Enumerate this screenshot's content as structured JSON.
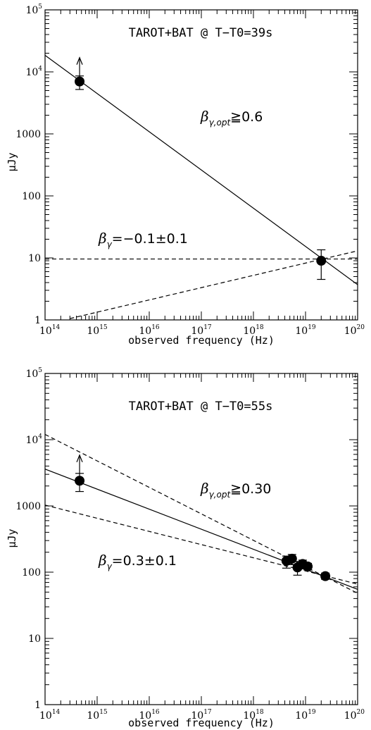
{
  "chart_data": [
    {
      "type": "scatter",
      "title": "TAROT+BAT @ T−T0=39s",
      "xlabel": "observed frequency (Hz)",
      "ylabel": "μJy",
      "xscale": "log",
      "yscale": "log",
      "xlim": [
        100000000000000.0,
        1e+20
      ],
      "ylim": [
        1,
        100000
      ],
      "x_ticks": [
        "10^14",
        "10^15",
        "10^16",
        "10^17",
        "10^18",
        "10^19",
        "10^20"
      ],
      "y_ticks": [
        "1",
        "10",
        "100",
        "1000",
        "10^4",
        "10^5"
      ],
      "points": [
        {
          "x": 460000000000000.0,
          "y": 7000,
          "yerr_low": 5200,
          "yerr_high": 8600,
          "lower_limit": true
        },
        {
          "x": 2e+19,
          "y": 9,
          "yerr_low": 4.5,
          "yerr_high": 13.5,
          "lower_limit": false
        }
      ],
      "lines": [
        {
          "style": "solid",
          "x": [
            100000000000000.0,
            1e+20
          ],
          "y": [
            18500,
            3.7
          ]
        },
        {
          "style": "dashed",
          "x": [
            100000000000000.0,
            1e+20
          ],
          "y": [
            9.6,
            9.6
          ]
        },
        {
          "style": "dashed",
          "x": [
            300000000000000.0,
            1e+20
          ],
          "y": [
            1.05,
            13
          ]
        }
      ],
      "annotations": [
        {
          "greek": "β",
          "sub": "γ,opt",
          "text": "≧0.6"
        },
        {
          "greek": "β",
          "sub": "γ",
          "text": "=−0.1±0.1"
        }
      ]
    },
    {
      "type": "scatter",
      "title": "TAROT+BAT @ T−T0=55s",
      "xlabel": "observed frequency (Hz)",
      "ylabel": "μJy",
      "xscale": "log",
      "yscale": "log",
      "xlim": [
        100000000000000.0,
        1e+20
      ],
      "ylim": [
        1,
        100000
      ],
      "x_ticks": [
        "10^14",
        "10^15",
        "10^16",
        "10^17",
        "10^18",
        "10^19",
        "10^20"
      ],
      "y_ticks": [
        "1",
        "10",
        "100",
        "1000",
        "10^4",
        "10^5"
      ],
      "points": [
        {
          "x": 460000000000000.0,
          "y": 2400,
          "yerr_low": 1650,
          "yerr_high": 3100,
          "lower_limit": true
        },
        {
          "x": 4.3e+18,
          "y": 148,
          "yerr_low": 115,
          "yerr_high": 175,
          "lower_limit": false
        },
        {
          "x": 5.5e+18,
          "y": 160,
          "yerr_low": 130,
          "yerr_high": 185,
          "lower_limit": false
        },
        {
          "x": 7e+18,
          "y": 118,
          "yerr_low": 90,
          "yerr_high": 145,
          "lower_limit": false
        },
        {
          "x": 8.8e+18,
          "y": 133,
          "yerr_low": 112,
          "yerr_high": 152,
          "lower_limit": false
        },
        {
          "x": 1.1e+19,
          "y": 122,
          "yerr_low": 108,
          "yerr_high": 136,
          "lower_limit": false
        },
        {
          "x": 2.4e+19,
          "y": 87,
          "yerr_low": 78,
          "yerr_high": 97,
          "lower_limit": false
        }
      ],
      "lines": [
        {
          "style": "solid",
          "x": [
            100000000000000.0,
            1e+20
          ],
          "y": [
            3600,
            55
          ]
        },
        {
          "style": "dashed",
          "x": [
            100000000000000.0,
            1e+20
          ],
          "y": [
            12000,
            48
          ]
        },
        {
          "style": "dashed",
          "x": [
            100000000000000.0,
            1e+20
          ],
          "y": [
            1030,
            66
          ]
        }
      ],
      "annotations": [
        {
          "greek": "β",
          "sub": "γ,opt",
          "text": "≧0.30"
        },
        {
          "greek": "β",
          "sub": "γ",
          "text": "=0.3±0.1"
        }
      ]
    }
  ]
}
